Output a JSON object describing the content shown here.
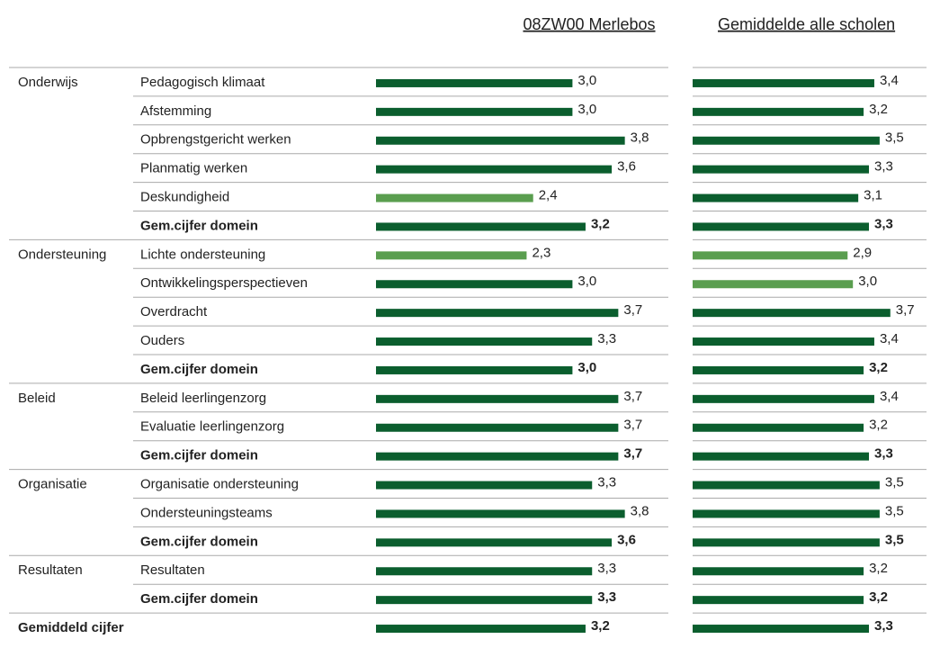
{
  "chart_data": {
    "type": "bar",
    "domains": [
      "Onderwijs",
      null,
      null,
      null,
      null,
      null,
      "Ondersteuning",
      null,
      null,
      null,
      null,
      "Beleid",
      null,
      null,
      "Organisatie",
      null,
      null,
      "Resultaten",
      null,
      "Gemiddeld cijfer"
    ],
    "categories": [
      "Pedagogisch klimaat",
      "Afstemming",
      "Opbrengstgericht werken",
      "Planmatig werken",
      "Deskundigheid",
      "Gem.cijfer domein",
      "Lichte ondersteuning",
      "Ontwikkelingsperspectieven",
      "Overdracht",
      "Ouders",
      "Gem.cijfer domein",
      "Beleid leerlingenzorg",
      "Evaluatie leerlingenzorg",
      "Gem.cijfer domein",
      "Organisatie ondersteuning",
      "Ondersteuningsteams",
      "Gem.cijfer domein",
      "Resultaten",
      "Gem.cijfer domein",
      null
    ],
    "bold": [
      false,
      false,
      false,
      false,
      false,
      true,
      false,
      false,
      false,
      false,
      true,
      false,
      false,
      true,
      false,
      false,
      true,
      false,
      true,
      true
    ],
    "series": [
      {
        "name": "08ZW00 Merlebos",
        "values": [
          3.0,
          3.0,
          3.8,
          3.6,
          2.4,
          3.2,
          2.3,
          3.0,
          3.7,
          3.3,
          3.0,
          3.7,
          3.7,
          3.7,
          3.3,
          3.8,
          3.6,
          3.3,
          3.3,
          3.2
        ],
        "value_labels": [
          "3,0",
          "3,0",
          "3,8",
          "3,6",
          "2,4",
          "3,2",
          "2,3",
          "3,0",
          "3,7",
          "3,3",
          "3,0",
          "3,7",
          "3,7",
          "3,7",
          "3,3",
          "3,8",
          "3,6",
          "3,3",
          "3,3",
          "3,2"
        ],
        "colors": [
          "#0b5e2e",
          "#0b5e2e",
          "#0b5e2e",
          "#0b5e2e",
          "#5a9e4f",
          "#0b5e2e",
          "#5a9e4f",
          "#0b5e2e",
          "#0b5e2e",
          "#0b5e2e",
          "#0b5e2e",
          "#0b5e2e",
          "#0b5e2e",
          "#0b5e2e",
          "#0b5e2e",
          "#0b5e2e",
          "#0b5e2e",
          "#0b5e2e",
          "#0b5e2e",
          "#0b5e2e"
        ]
      },
      {
        "name": "Gemiddelde alle scholen",
        "values": [
          3.4,
          3.2,
          3.5,
          3.3,
          3.1,
          3.3,
          2.9,
          3.0,
          3.7,
          3.4,
          3.2,
          3.4,
          3.2,
          3.3,
          3.5,
          3.5,
          3.5,
          3.2,
          3.2,
          3.3
        ],
        "value_labels": [
          "3,4",
          "3,2",
          "3,5",
          "3,3",
          "3,1",
          "3,3",
          "2,9",
          "3,0",
          "3,7",
          "3,4",
          "3,2",
          "3,4",
          "3,2",
          "3,3",
          "3,5",
          "3,5",
          "3,5",
          "3,2",
          "3,2",
          "3,3"
        ],
        "colors": [
          "#0b5e2e",
          "#0b5e2e",
          "#0b5e2e",
          "#0b5e2e",
          "#0b5e2e",
          "#0b5e2e",
          "#5a9e4f",
          "#5a9e4f",
          "#0b5e2e",
          "#0b5e2e",
          "#0b5e2e",
          "#0b5e2e",
          "#0b5e2e",
          "#0b5e2e",
          "#0b5e2e",
          "#0b5e2e",
          "#0b5e2e",
          "#0b5e2e",
          "#0b5e2e",
          "#0b5e2e"
        ]
      }
    ]
  }
}
